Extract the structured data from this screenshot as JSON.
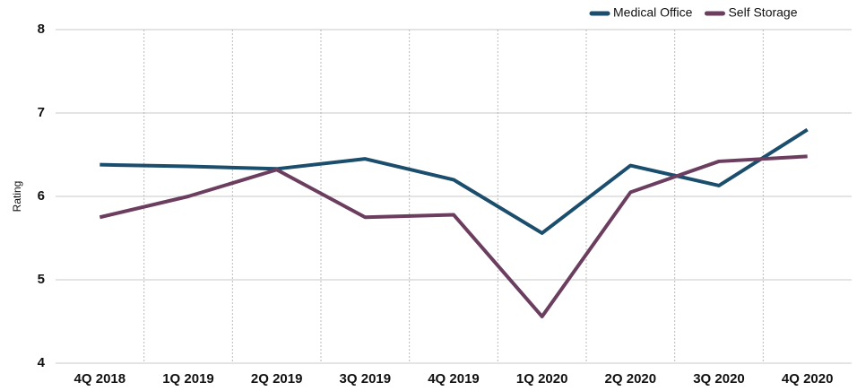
{
  "chart_data": {
    "type": "line",
    "y_label": "Rating",
    "categories": [
      "4Q 2018",
      "1Q 2019",
      "2Q 2019",
      "3Q 2019",
      "4Q 2019",
      "1Q 2020",
      "2Q 2020",
      "3Q 2020",
      "4Q 2020"
    ],
    "series": [
      {
        "name": "Medical Office",
        "color": "#1b4d6d",
        "values": [
          6.38,
          6.36,
          6.33,
          6.45,
          6.2,
          5.56,
          6.37,
          6.13,
          6.8
        ]
      },
      {
        "name": "Self Storage",
        "color": "#6b3d5f",
        "values": [
          5.75,
          6.0,
          6.32,
          5.75,
          5.78,
          4.56,
          6.05,
          6.42,
          6.48
        ]
      }
    ],
    "ylim": [
      4,
      8
    ],
    "yticks": [
      4,
      5,
      6,
      7,
      8
    ],
    "grid": true,
    "legend": "top-right"
  }
}
